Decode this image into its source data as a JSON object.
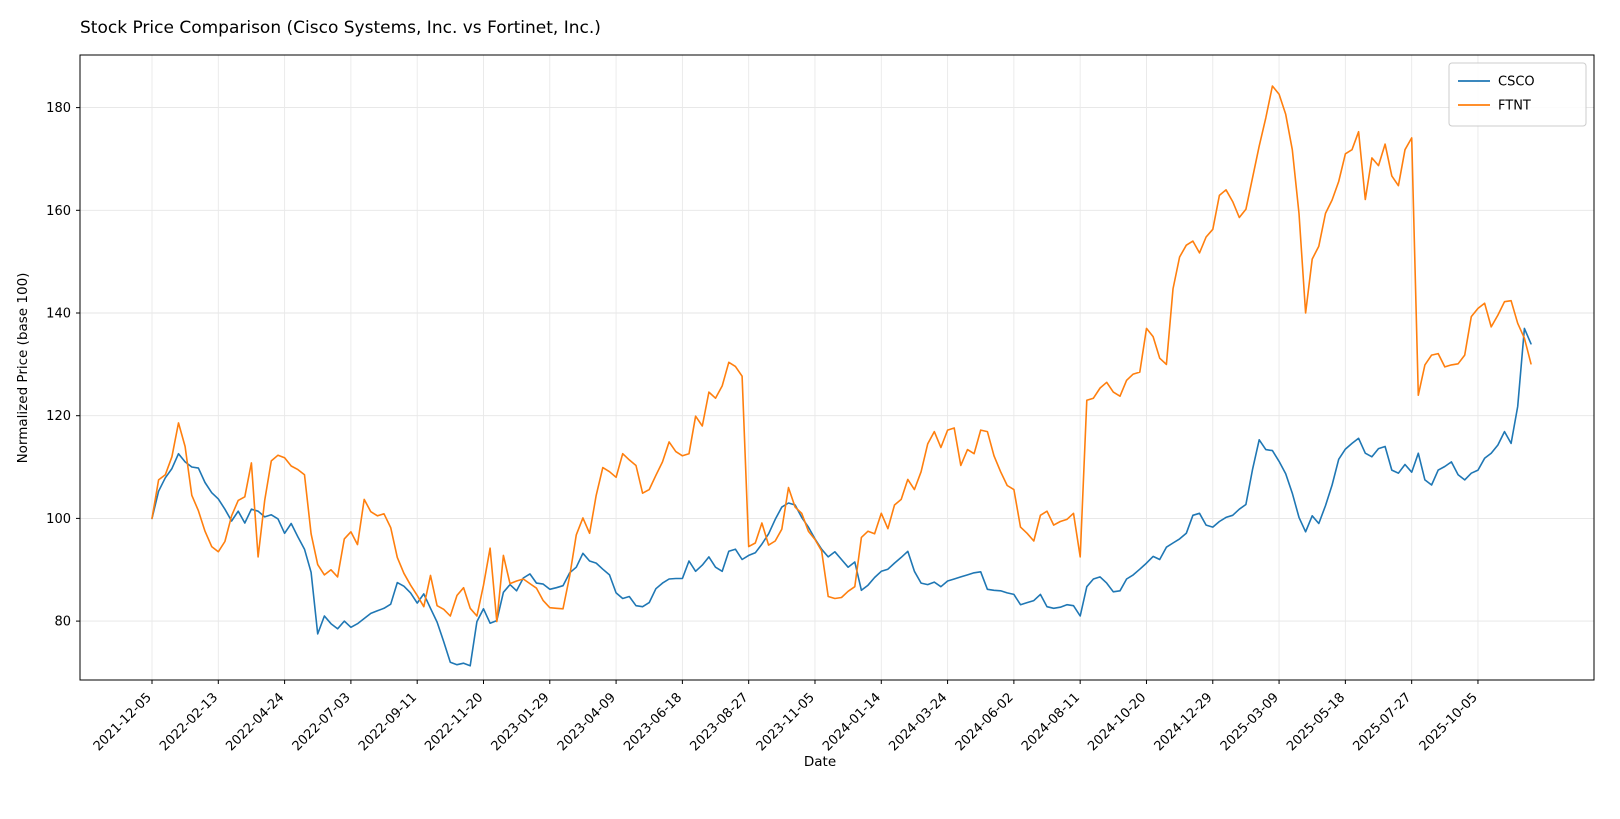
{
  "chart_data": {
    "type": "line",
    "title": "Stock Price Comparison (Cisco Systems, Inc. vs Fortinet, Inc.)",
    "xlabel": "Date",
    "ylabel": "Normalized Price (base 100)",
    "grid": true,
    "legend_position": "upper right",
    "x_start": "2021-12-05",
    "x_end": "2025-11-30",
    "frequency": "weekly",
    "points_per_series": 209,
    "ylim": [
      68.5,
      190
    ],
    "y_ticks": [
      80,
      100,
      120,
      140,
      160,
      180
    ],
    "x_tick_labels": [
      "2021-12-05",
      "2022-02-13",
      "2022-04-24",
      "2022-07-03",
      "2022-09-11",
      "2022-11-20",
      "2023-01-29",
      "2023-04-09",
      "2023-06-18",
      "2023-08-27",
      "2023-11-05",
      "2024-01-14",
      "2024-03-24",
      "2024-06-02",
      "2024-08-11",
      "2024-10-20",
      "2024-12-29",
      "2025-03-09",
      "2025-05-18",
      "2025-07-27",
      "2025-10-05"
    ],
    "series": [
      {
        "name": "CSCO",
        "color": "#1f77b4",
        "values": [
          100.0,
          105.3,
          107.9,
          109.7,
          112.6,
          111.0,
          110.0,
          109.8,
          107.0,
          105.0,
          103.8,
          101.8,
          99.5,
          101.4,
          99.1,
          101.8,
          101.4,
          100.3,
          100.7,
          99.9,
          97.1,
          99.0,
          96.4,
          94.0,
          89.5,
          77.5,
          81.0,
          79.5,
          78.5,
          80.0,
          78.8,
          79.5,
          80.5,
          81.5,
          82.0,
          82.5,
          83.3,
          87.5,
          86.8,
          85.5,
          83.5,
          85.3,
          82.5,
          79.8,
          76.0,
          72.0,
          71.5,
          71.8,
          71.3,
          79.9,
          82.4,
          79.6,
          80.1,
          85.6,
          87.1,
          85.9,
          88.4,
          89.2,
          87.4,
          87.2,
          86.2,
          86.5,
          86.9,
          89.4,
          90.5,
          93.2,
          91.7,
          91.3,
          90.1,
          89.0,
          85.5,
          84.4,
          84.8,
          83.0,
          82.8,
          83.6,
          86.3,
          87.4,
          88.2,
          88.3,
          88.3,
          91.7,
          89.7,
          90.9,
          92.5,
          90.5,
          89.7,
          93.6,
          94.0,
          92.0,
          92.8,
          93.3,
          95.0,
          97.0,
          99.8,
          102.2,
          103.0,
          102.6,
          100.2,
          98.3,
          96.0,
          94.0,
          92.5,
          93.5,
          92.0,
          90.5,
          91.5,
          86.0,
          87.0,
          88.5,
          89.7,
          90.1,
          91.3,
          92.4,
          93.6,
          89.7,
          87.4,
          87.1,
          87.6,
          86.7,
          87.8,
          88.2,
          88.6,
          89.0,
          89.4,
          89.6,
          86.2,
          86.0,
          85.9,
          85.5,
          85.2,
          83.2,
          83.6,
          84.0,
          85.2,
          82.8,
          82.5,
          82.7,
          83.2,
          83.0,
          81.0,
          86.7,
          88.2,
          88.6,
          87.4,
          85.7,
          85.9,
          88.2,
          89.0,
          90.1,
          91.3,
          92.6,
          92.0,
          94.4,
          95.2,
          96.0,
          97.1,
          100.6,
          101.0,
          98.7,
          98.3,
          99.4,
          100.2,
          100.6,
          101.8,
          102.7,
          109.5,
          115.3,
          113.4,
          113.2,
          111.1,
          108.7,
          104.9,
          100.2,
          97.4,
          100.5,
          99.0,
          102.5,
          106.5,
          111.5,
          113.5,
          114.6,
          115.6,
          112.7,
          112.0,
          113.6,
          114.0,
          109.4,
          108.8,
          110.5,
          109.0,
          112.7,
          107.5,
          106.5,
          109.4,
          110.1,
          111.0,
          108.5,
          107.5,
          108.8,
          109.4,
          111.7,
          112.7,
          114.3,
          116.9,
          114.6,
          121.8,
          137.0,
          134.0
        ]
      },
      {
        "name": "FTNT",
        "color": "#ff7f0e",
        "values": [
          100.0,
          107.5,
          108.5,
          112.0,
          118.6,
          114.0,
          104.5,
          101.5,
          97.5,
          94.5,
          93.5,
          95.5,
          100.5,
          103.5,
          104.2,
          110.8,
          92.5,
          103.5,
          111.2,
          112.3,
          111.8,
          110.2,
          109.5,
          108.5,
          97.0,
          91.0,
          89.0,
          90.0,
          88.6,
          96.0,
          97.4,
          94.9,
          103.7,
          101.3,
          100.5,
          100.9,
          98.2,
          92.4,
          89.3,
          87.0,
          85.0,
          82.8,
          88.9,
          83.0,
          82.3,
          81.0,
          85.0,
          86.5,
          82.5,
          81.0,
          87.0,
          94.2,
          79.9,
          92.8,
          87.3,
          87.8,
          88.2,
          87.3,
          86.4,
          84.0,
          82.6,
          82.5,
          82.4,
          88.8,
          96.8,
          100.1,
          97.1,
          104.5,
          109.9,
          109.1,
          108.0,
          112.6,
          111.4,
          110.3,
          104.9,
          105.6,
          108.4,
          111.0,
          114.9,
          113.0,
          112.2,
          112.6,
          119.9,
          118.0,
          124.6,
          123.4,
          125.8,
          130.4,
          129.6,
          127.7,
          94.5,
          95.2,
          99.1,
          94.8,
          95.6,
          97.9,
          106.0,
          102.2,
          101.0,
          97.5,
          95.9,
          93.7,
          84.8,
          84.4,
          84.6,
          85.8,
          86.7,
          96.3,
          97.5,
          97.0,
          101.0,
          98.0,
          102.6,
          103.7,
          107.6,
          105.6,
          109.1,
          114.5,
          116.9,
          113.8,
          117.2,
          117.6,
          110.3,
          113.4,
          112.6,
          117.2,
          116.9,
          112.2,
          109.1,
          106.4,
          105.6,
          98.3,
          97.1,
          95.6,
          100.6,
          101.4,
          98.7,
          99.4,
          99.8,
          101.0,
          92.5,
          123.0,
          123.4,
          125.4,
          126.5,
          124.6,
          123.8,
          126.9,
          128.1,
          128.5,
          137.0,
          135.4,
          131.2,
          130.0,
          144.7,
          150.9,
          153.2,
          154.0,
          151.7,
          154.8,
          156.3,
          162.9,
          164.0,
          161.7,
          158.6,
          160.2,
          166.3,
          172.5,
          178.0,
          184.2,
          182.6,
          178.7,
          171.8,
          159.4,
          140.0,
          150.5,
          153.0,
          159.4,
          162.0,
          165.6,
          171.0,
          171.8,
          175.3,
          162.1,
          170.2,
          168.7,
          172.9,
          166.7,
          164.8,
          171.8,
          174.1,
          124.0,
          129.9,
          131.8,
          132.1,
          129.5,
          129.9,
          130.1,
          131.8,
          139.3,
          140.9,
          141.9,
          137.3,
          139.6,
          142.2,
          142.4,
          138.0,
          135.1,
          130.1
        ]
      }
    ]
  }
}
